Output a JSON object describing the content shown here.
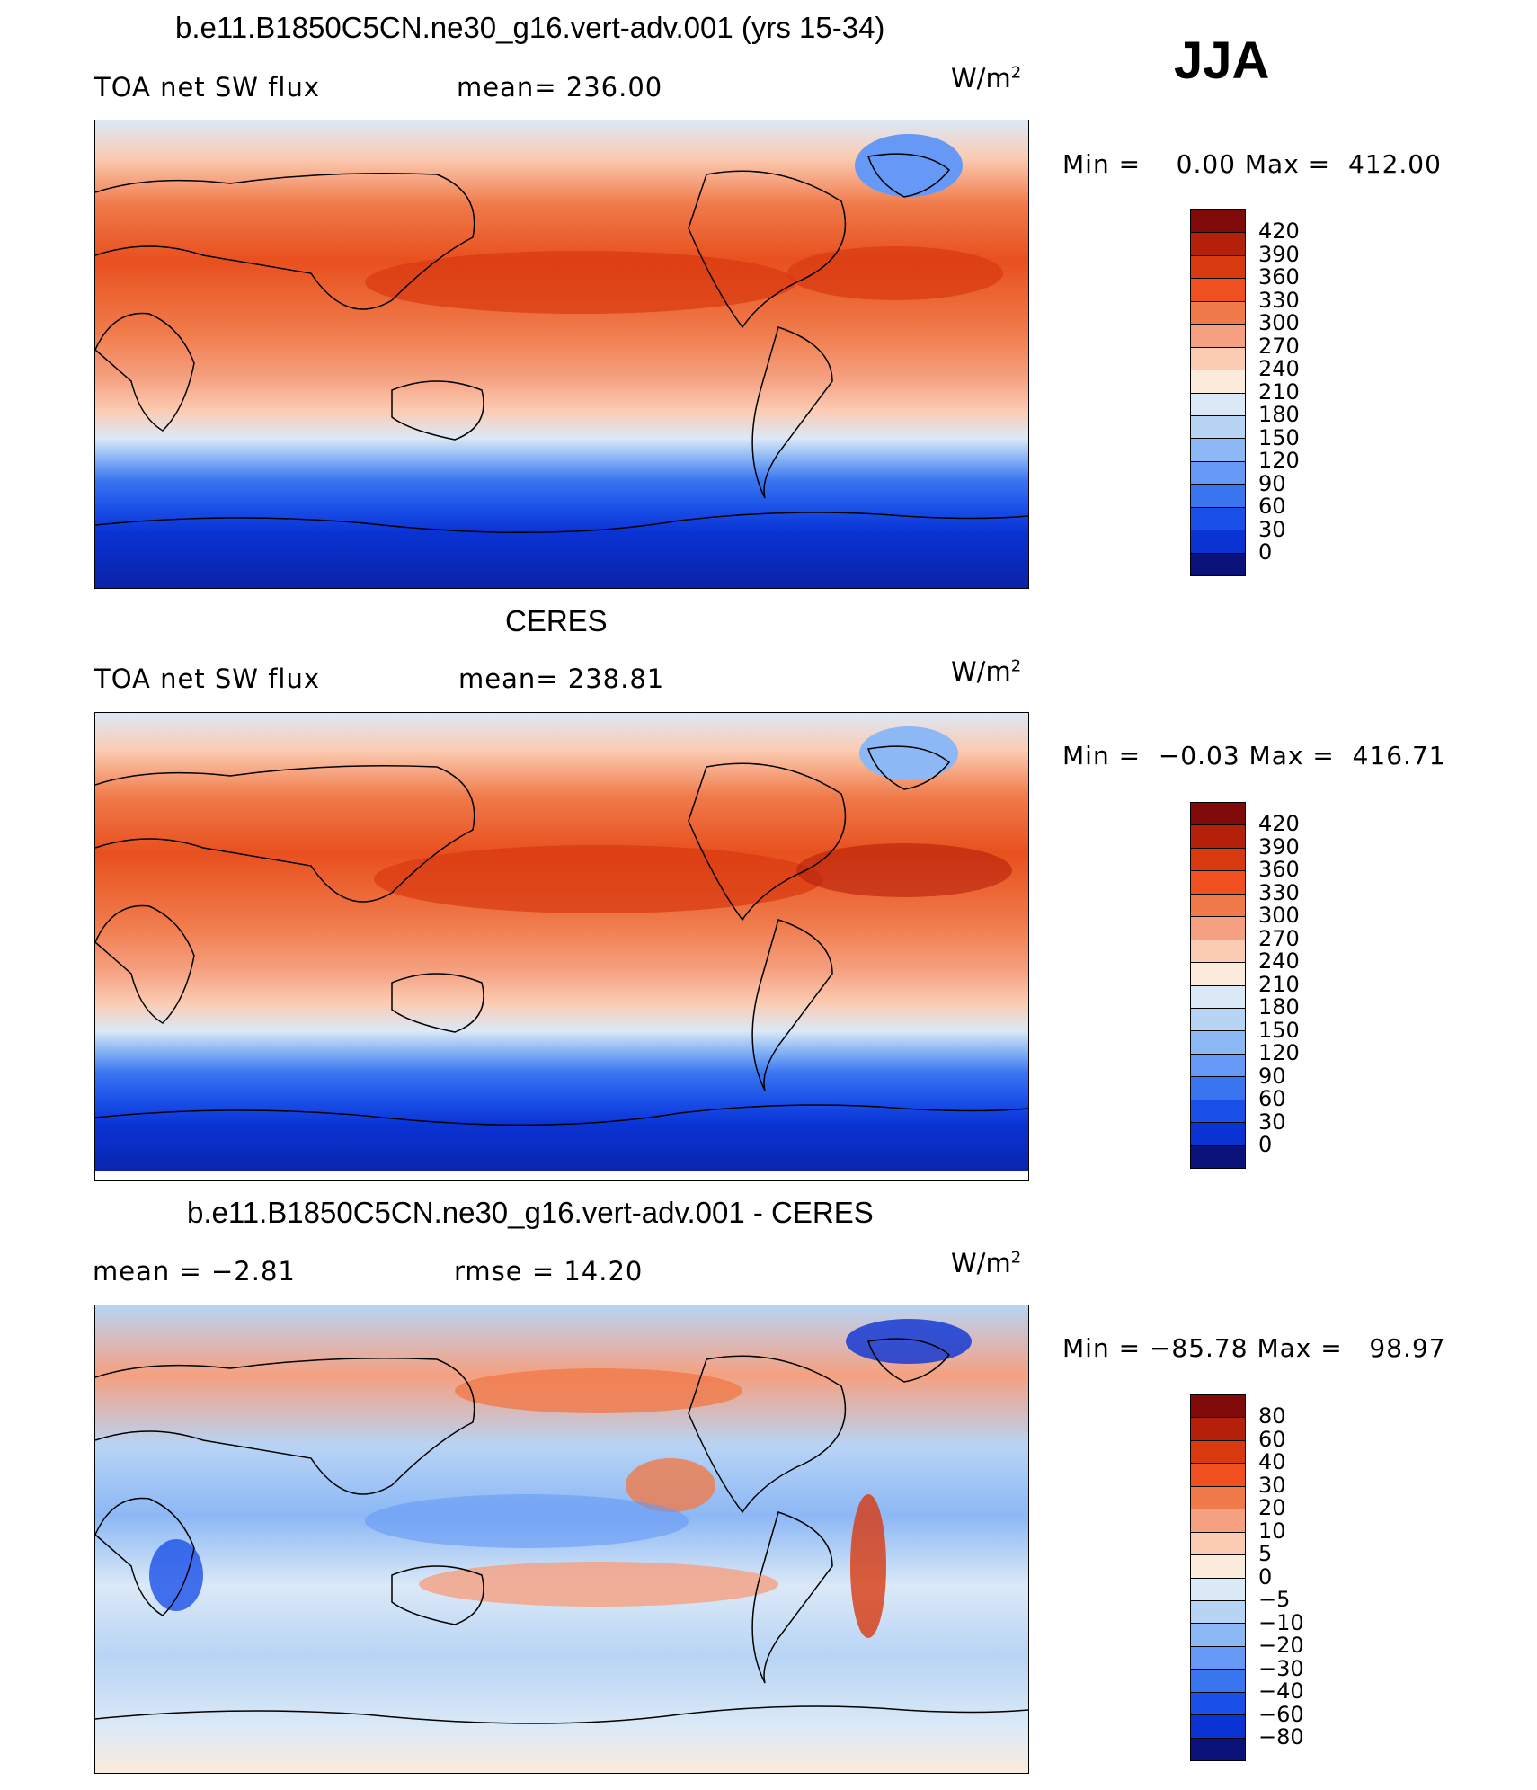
{
  "season": "JJA",
  "colorbar_colors": {
    "abs": [
      "#800a0a",
      "#b5200a",
      "#d8390f",
      "#f05020",
      "#f07a4a",
      "#f5a080",
      "#fbcbb2",
      "#fcebdb",
      "#dbe9f7",
      "#b8d4f5",
      "#8cb8f5",
      "#6699f5",
      "#3a75f0",
      "#1a50e8",
      "#0a33d4",
      "#0a22a8",
      "#0a127a"
    ],
    "diff": [
      "#800a0a",
      "#b5200a",
      "#d8390f",
      "#f05020",
      "#f07a4a",
      "#f5a080",
      "#fbcbb2",
      "#fcebdb",
      "#dbe9f7",
      "#b8d4f5",
      "#8cb8f5",
      "#6699f5",
      "#3a75f0",
      "#1a50e8",
      "#0a33d4",
      "#0a22a8",
      "#0a127a"
    ]
  },
  "panels": [
    {
      "title": "b.e11.B1850C5CN.ne30_g16.vert-adv.001 (yrs 15-34)",
      "left_label": "TOA net SW flux",
      "mid_label": "mean=  236.00",
      "units_base": "W/m",
      "units_exp": "2",
      "minmax": "Min =    0.00 Max =  412.00",
      "ticks": [
        "420",
        "390",
        "360",
        "330",
        "300",
        "270",
        "240",
        "210",
        "180",
        "150",
        "120",
        "90",
        "60",
        "30",
        "0"
      ]
    },
    {
      "title": "CERES",
      "left_label": "TOA net SW flux",
      "mid_label": "mean=  238.81",
      "units_base": "W/m",
      "units_exp": "2",
      "minmax": "Min =  −0.03 Max =  416.71",
      "ticks": [
        "420",
        "390",
        "360",
        "330",
        "300",
        "270",
        "240",
        "210",
        "180",
        "150",
        "120",
        "90",
        "60",
        "30",
        "0"
      ]
    },
    {
      "title": "b.e11.B1850C5CN.ne30_g16.vert-adv.001 - CERES",
      "left_label": "mean =   −2.81",
      "mid_label": "rmse =   14.20",
      "units_base": "W/m",
      "units_exp": "2",
      "minmax": "Min = −85.78 Max =   98.97",
      "ticks": [
        "80",
        "60",
        "40",
        "30",
        "20",
        "10",
        "5",
        "0",
        "−5",
        "−10",
        "−20",
        "−30",
        "−40",
        "−60",
        "−80"
      ]
    }
  ]
}
